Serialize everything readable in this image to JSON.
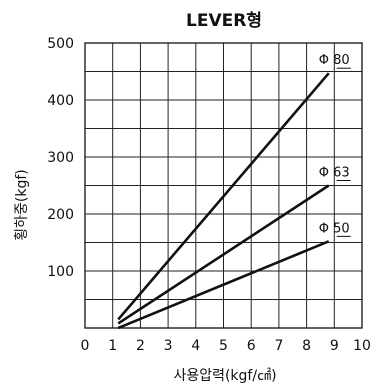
{
  "chart_data": {
    "type": "line",
    "title": "LEVER형",
    "xlabel": "사용압력(kgf/㎠)",
    "ylabel": "횡하중(kgf)",
    "xlim": [
      0,
      10
    ],
    "ylim": [
      0,
      500
    ],
    "x_ticks": [
      "0",
      "1",
      "2",
      "3",
      "4",
      "5",
      "6",
      "7",
      "8",
      "9",
      "10"
    ],
    "y_ticks": [
      "100",
      "200",
      "300",
      "400",
      "500"
    ],
    "grid": true,
    "series": [
      {
        "name": "Φ 80",
        "x": [
          1.2,
          8.8
        ],
        "y": [
          15,
          447
        ]
      },
      {
        "name": "Φ 63",
        "x": [
          1.2,
          8.8
        ],
        "y": [
          8,
          250
        ]
      },
      {
        "name": "Φ 50",
        "x": [
          1.2,
          8.8
        ],
        "y": [
          0,
          152
        ]
      }
    ]
  }
}
